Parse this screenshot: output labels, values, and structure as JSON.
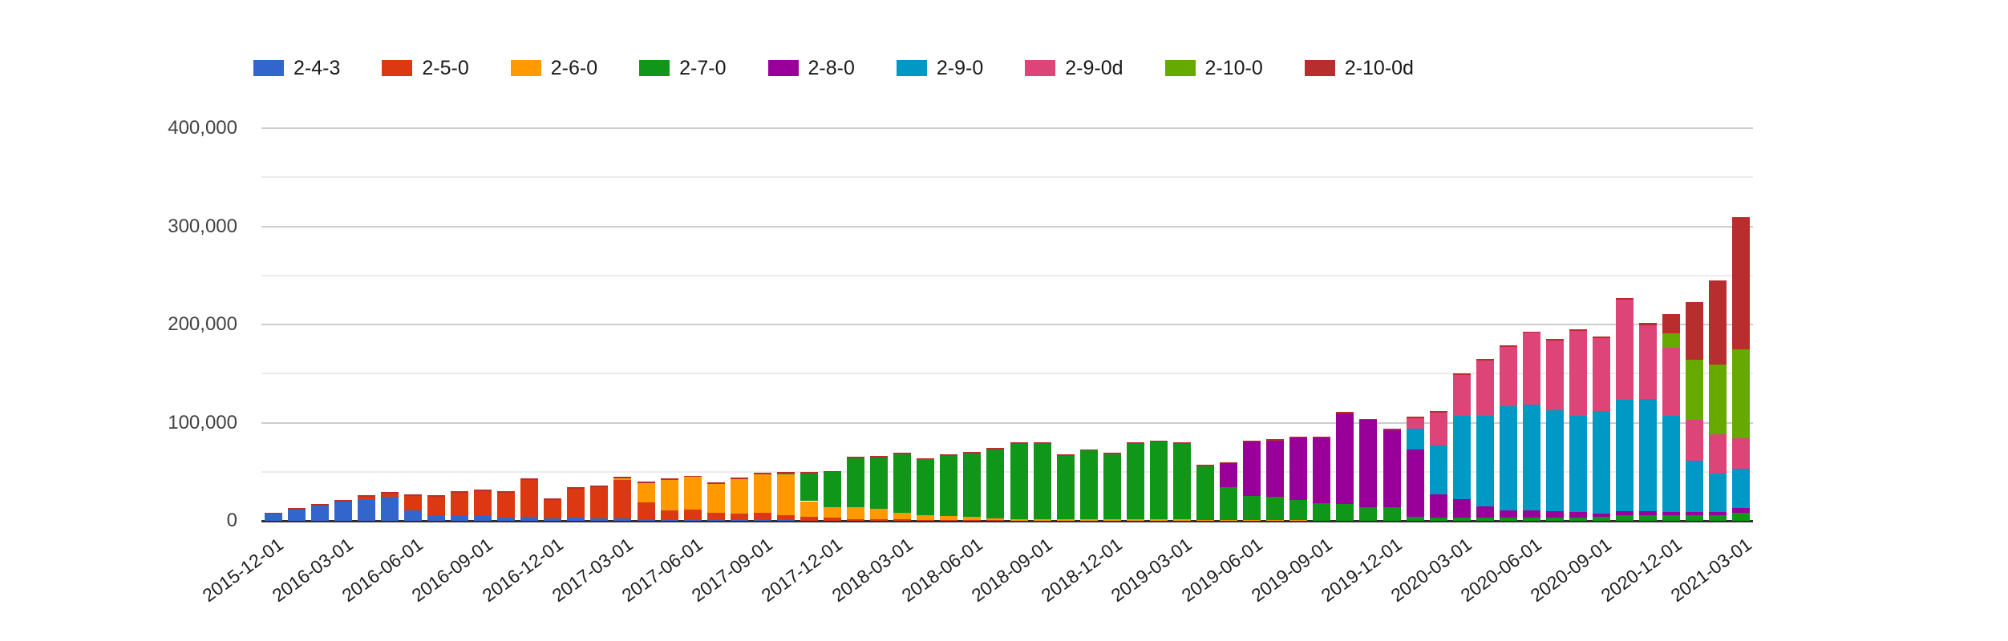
{
  "chart_data": {
    "type": "bar",
    "stacked": true,
    "title": "",
    "xlabel": "",
    "ylabel": "",
    "legend_position": "top",
    "grid": true,
    "ylim": [
      0,
      400000
    ],
    "x_label_every": 3,
    "yticks": [
      {
        "value": 0,
        "label": "0",
        "major": true
      },
      {
        "value": 50000,
        "label": "",
        "major": false
      },
      {
        "value": 100000,
        "label": "100,000",
        "major": true
      },
      {
        "value": 150000,
        "label": "",
        "major": false
      },
      {
        "value": 200000,
        "label": "200,000",
        "major": true
      },
      {
        "value": 250000,
        "label": "",
        "major": false
      },
      {
        "value": 300000,
        "label": "300,000",
        "major": true
      },
      {
        "value": 350000,
        "label": "",
        "major": false
      },
      {
        "value": 400000,
        "label": "400,000",
        "major": true
      }
    ],
    "categories": [
      "2015-12-01",
      "2016-01-01",
      "2016-02-01",
      "2016-03-01",
      "2016-04-01",
      "2016-05-01",
      "2016-06-01",
      "2016-07-01",
      "2016-08-01",
      "2016-09-01",
      "2016-10-01",
      "2016-11-01",
      "2016-12-01",
      "2017-01-01",
      "2017-02-01",
      "2017-03-01",
      "2017-04-01",
      "2017-05-01",
      "2017-06-01",
      "2017-07-01",
      "2017-08-01",
      "2017-09-01",
      "2017-10-01",
      "2017-11-01",
      "2017-12-01",
      "2018-01-01",
      "2018-02-01",
      "2018-03-01",
      "2018-04-01",
      "2018-05-01",
      "2018-06-01",
      "2018-07-01",
      "2018-08-01",
      "2018-09-01",
      "2018-10-01",
      "2018-11-01",
      "2018-12-01",
      "2019-01-01",
      "2019-02-01",
      "2019-03-01",
      "2019-04-01",
      "2019-05-01",
      "2019-06-01",
      "2019-07-01",
      "2019-08-01",
      "2019-09-01",
      "2019-10-01",
      "2019-11-01",
      "2019-12-01",
      "2020-01-01",
      "2020-02-01",
      "2020-03-01",
      "2020-04-01",
      "2020-05-01",
      "2020-06-01",
      "2020-07-01",
      "2020-08-01",
      "2020-09-01",
      "2020-10-01",
      "2020-11-01",
      "2020-12-01",
      "2021-01-01",
      "2021-02-01",
      "2021-03-01"
    ],
    "series": [
      {
        "name": "2-4-3",
        "color": "#3366CC",
        "values": [
          7000,
          11500,
          15500,
          19500,
          21500,
          24500,
          11000,
          6000,
          5000,
          5000,
          3000,
          4000,
          2500,
          3000,
          2500,
          2500,
          1500,
          1000,
          1000,
          500,
          500,
          500,
          500,
          0,
          0,
          0,
          0,
          0,
          0,
          0,
          0,
          0,
          0,
          0,
          0,
          0,
          0,
          0,
          0,
          0,
          0,
          0,
          0,
          0,
          0,
          0,
          0,
          0,
          0,
          0,
          0,
          0,
          0,
          0,
          0,
          0,
          0,
          0,
          0,
          0,
          0,
          0,
          0,
          0
        ]
      },
      {
        "name": "2-5-0",
        "color": "#DC3912",
        "values": [
          0,
          0,
          0,
          0,
          3000,
          3000,
          14500,
          18500,
          23500,
          25500,
          25500,
          37500,
          19000,
          29500,
          32000,
          39000,
          17000,
          10000,
          10500,
          8000,
          7000,
          8000,
          5000,
          4000,
          3000,
          2000,
          2000,
          1500,
          1000,
          1000,
          1000,
          500,
          0,
          0,
          0,
          0,
          0,
          0,
          0,
          0,
          0,
          0,
          0,
          0,
          0,
          0,
          0,
          0,
          0,
          0,
          0,
          0,
          0,
          0,
          0,
          0,
          0,
          0,
          0,
          0,
          0,
          0,
          0,
          0
        ]
      },
      {
        "name": "2-6-0",
        "color": "#FF9900",
        "values": [
          0,
          0,
          0,
          0,
          0,
          0,
          0,
          0,
          0,
          0,
          0,
          0,
          0,
          0,
          0,
          2000,
          20000,
          30500,
          33000,
          29000,
          35000,
          39000,
          41500,
          16000,
          11000,
          12000,
          10000,
          7000,
          5000,
          4000,
          3000,
          2000,
          2000,
          1500,
          1500,
          1500,
          1500,
          1500,
          1500,
          1500,
          1000,
          1000,
          500,
          500,
          500,
          0,
          0,
          0,
          0,
          0,
          0,
          0,
          0,
          0,
          0,
          0,
          0,
          0,
          0,
          0,
          0,
          0,
          0,
          0
        ]
      },
      {
        "name": "2-7-0",
        "color": "#109618",
        "values": [
          0,
          0,
          0,
          0,
          0,
          0,
          0,
          0,
          0,
          0,
          0,
          0,
          0,
          0,
          0,
          0,
          0,
          0,
          0,
          0,
          0,
          0,
          1000,
          28500,
          35500,
          49500,
          52500,
          59000,
          56500,
          61500,
          64500,
          70000,
          76500,
          77000,
          65000,
          70000,
          66000,
          77000,
          79000,
          77000,
          54500,
          33500,
          25000,
          24000,
          21000,
          18000,
          17000,
          14000,
          13500,
          4000,
          3000,
          3000,
          3000,
          3000,
          3000,
          3000,
          3000,
          4000,
          6000,
          6000,
          6000,
          6000,
          6000,
          8000
        ]
      },
      {
        "name": "2-8-0",
        "color": "#990099",
        "values": [
          0,
          0,
          0,
          0,
          0,
          0,
          0,
          0,
          0,
          0,
          0,
          0,
          0,
          0,
          0,
          0,
          0,
          0,
          0,
          0,
          0,
          0,
          0,
          0,
          0,
          0,
          0,
          0,
          0,
          0,
          0,
          0,
          0,
          0,
          0,
          0,
          0,
          0,
          0,
          0,
          0,
          24000,
          55000,
          57000,
          63000,
          66500,
          92500,
          88500,
          79000,
          69000,
          24000,
          19000,
          12000,
          8000,
          8000,
          7000,
          6000,
          3000,
          4000,
          4000,
          3000,
          3000,
          3000,
          5000
        ]
      },
      {
        "name": "2-9-0",
        "color": "#0099C6",
        "values": [
          0,
          0,
          0,
          0,
          0,
          0,
          0,
          0,
          0,
          0,
          0,
          0,
          0,
          0,
          0,
          0,
          0,
          0,
          0,
          0,
          0,
          0,
          0,
          0,
          0,
          0,
          0,
          0,
          0,
          0,
          0,
          0,
          0,
          0,
          0,
          0,
          0,
          0,
          0,
          0,
          0,
          0,
          0,
          0,
          0,
          0,
          0,
          0,
          0,
          21000,
          50000,
          85000,
          92000,
          106000,
          107000,
          103000,
          98000,
          105000,
          113000,
          114000,
          98000,
          52000,
          39000,
          40000
        ]
      },
      {
        "name": "2-9-0d",
        "color": "#DD4477",
        "values": [
          0,
          0,
          0,
          0,
          0,
          0,
          0,
          0,
          0,
          0,
          0,
          0,
          0,
          0,
          0,
          0,
          0,
          0,
          0,
          0,
          0,
          0,
          0,
          0,
          0,
          0,
          0,
          0,
          0,
          0,
          0,
          0,
          0,
          0,
          0,
          0,
          0,
          0,
          0,
          0,
          0,
          0,
          0,
          0,
          0,
          0,
          0,
          0,
          0,
          10500,
          33500,
          41500,
          56500,
          60500,
          73500,
          70500,
          86500,
          74500,
          102000,
          75000,
          69000,
          42000,
          40000,
          31000
        ]
      },
      {
        "name": "2-10-0",
        "color": "#66AA00",
        "values": [
          0,
          0,
          0,
          0,
          0,
          0,
          0,
          0,
          0,
          0,
          0,
          0,
          0,
          0,
          0,
          0,
          0,
          0,
          0,
          0,
          0,
          0,
          0,
          0,
          0,
          0,
          0,
          0,
          0,
          0,
          0,
          0,
          0,
          0,
          0,
          0,
          0,
          0,
          0,
          0,
          0,
          0,
          0,
          0,
          0,
          0,
          0,
          0,
          0,
          0,
          0,
          0,
          0,
          0,
          0,
          0,
          0,
          0,
          0,
          0,
          15000,
          61000,
          71000,
          91000
        ]
      },
      {
        "name": "2-10-0d",
        "color": "#B82E2E",
        "values": [
          1000,
          1500,
          1500,
          1500,
          1500,
          1500,
          1500,
          1500,
          1500,
          1500,
          1500,
          1500,
          1500,
          1500,
          1500,
          1500,
          1500,
          1500,
          1500,
          1500,
          1500,
          1500,
          1500,
          1500,
          1500,
          1500,
          1500,
          1500,
          1500,
          1500,
          1500,
          1500,
          1500,
          1500,
          1500,
          1500,
          1500,
          1500,
          1500,
          1500,
          1500,
          1500,
          1500,
          1500,
          1500,
          1500,
          1500,
          1500,
          1500,
          1500,
          1500,
          1500,
          1500,
          1500,
          1500,
          1500,
          1500,
          1500,
          2000,
          3000,
          20000,
          59000,
          86000,
          134000
        ]
      }
    ]
  }
}
